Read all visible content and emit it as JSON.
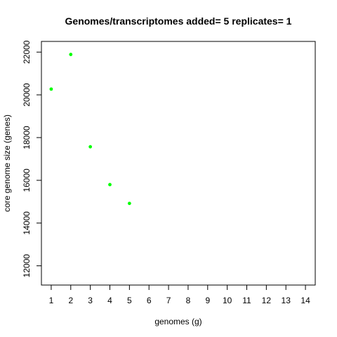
{
  "chart_data": {
    "type": "scatter",
    "title": "Genomes/transcriptomes added= 5  replicates= 1",
    "xlabel": "genomes (g)",
    "ylabel": "core genome size (genes)",
    "xlim": [
      0.5,
      14.5
    ],
    "ylim": [
      11100,
      22500
    ],
    "xticks": [
      1,
      2,
      3,
      4,
      5,
      6,
      7,
      8,
      9,
      10,
      11,
      12,
      13,
      14
    ],
    "yticks": [
      12000,
      14000,
      16000,
      18000,
      20000,
      22000
    ],
    "grid": false,
    "legend": "none",
    "point_color": "#00ff00",
    "x": [
      1,
      2,
      3,
      4,
      5
    ],
    "y": [
      20270,
      21890,
      17570,
      15800,
      14920
    ]
  }
}
